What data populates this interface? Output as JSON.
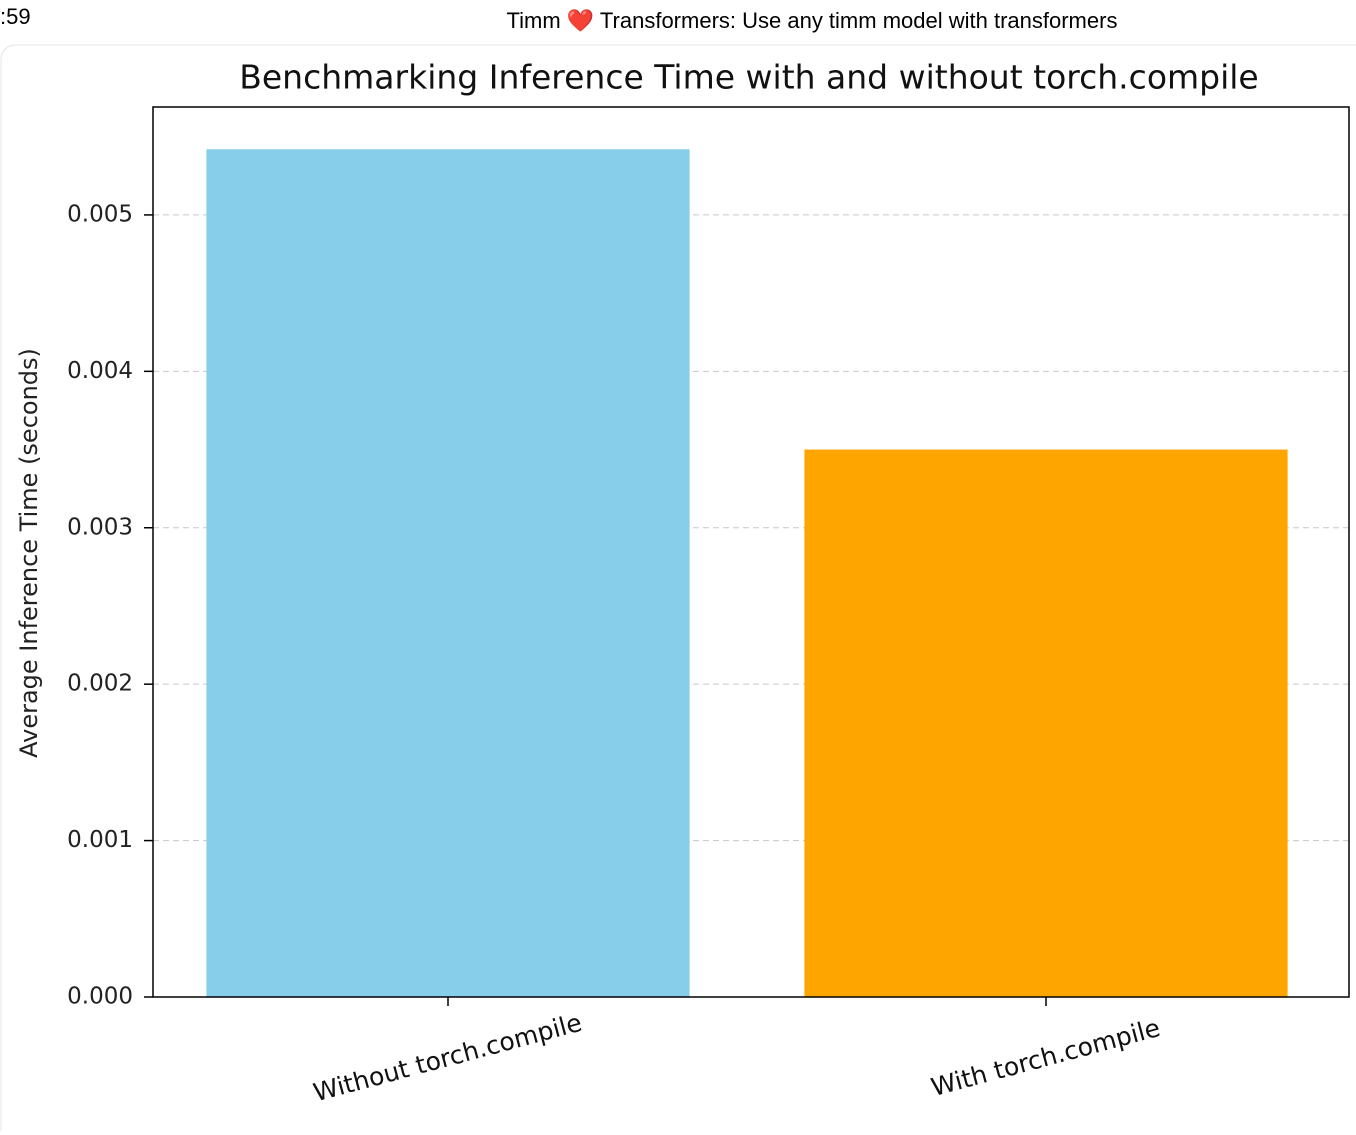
{
  "header": {
    "time": ":59",
    "title": "Timm ❤️ Transformers: Use any timm model with transformers"
  },
  "chart_data": {
    "type": "bar",
    "title": "Benchmarking Inference Time with and without torch.compile",
    "y_label": "Average Inference Time (seconds)",
    "categories": [
      "Without torch.compile",
      "With torch.compile"
    ],
    "values": [
      0.00542,
      0.0035
    ],
    "colors": [
      "#87ceeb",
      "#ffa500"
    ],
    "ylim": [
      0,
      0.00569
    ],
    "yticks": [
      {
        "value": 0,
        "label": "0.000"
      },
      0.001,
      0.002,
      0.003,
      0.004,
      0.005
    ],
    "grid": true
  }
}
